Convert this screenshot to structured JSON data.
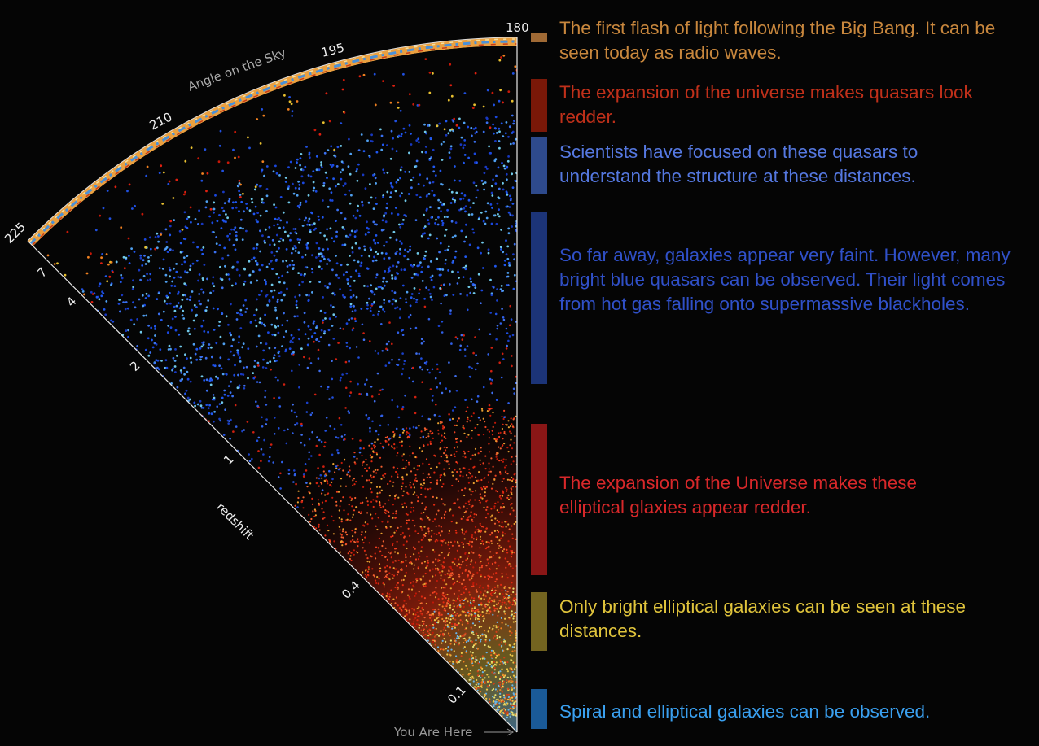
{
  "sky_axis": {
    "label": "Angle on the Sky",
    "ticks": [
      "180",
      "195",
      "210",
      "225"
    ]
  },
  "redshift_axis": {
    "label": "redshift",
    "ticks": [
      "7",
      "4",
      "2",
      "1",
      "0.4",
      "0.1"
    ]
  },
  "origin_label": "You Are Here",
  "bands": [
    {
      "id": "cmb",
      "color": "#a06a35",
      "text_color": "#c8873d",
      "text": "The first flash of light following the Big Bang. It can be seen today as radio waves."
    },
    {
      "id": "red-quasars",
      "color": "#7a1808",
      "text_color": "#c0301a",
      "text": "The expansion of the universe makes quasars look redder."
    },
    {
      "id": "focus-quasars",
      "color": "#2e4a8c",
      "text_color": "#5578e0",
      "text": "Scientists have focused on these quasars to understand the structure at these distances."
    },
    {
      "id": "faint-galaxies",
      "color": "#1c3478",
      "text_color": "#3050c8",
      "text": "So far away, galaxies appear very faint. However, many bright blue quasars can be observed. Their light comes from hot gas falling onto supermassive blackholes."
    },
    {
      "id": "red-ellipticals",
      "color": "#8a1616",
      "text_color": "#d8282a",
      "text": "The expansion of the Universe makes these elliptical glaxies appear redder."
    },
    {
      "id": "bright-ellipticals",
      "color": "#736420",
      "text_color": "#e0c43c",
      "text": "Only bright elliptical galaxies can be seen at these distances."
    },
    {
      "id": "spirals",
      "color": "#1a5a98",
      "text_color": "#3aa0f0",
      "text": "Spiral and elliptical galaxies can be observed."
    }
  ]
}
